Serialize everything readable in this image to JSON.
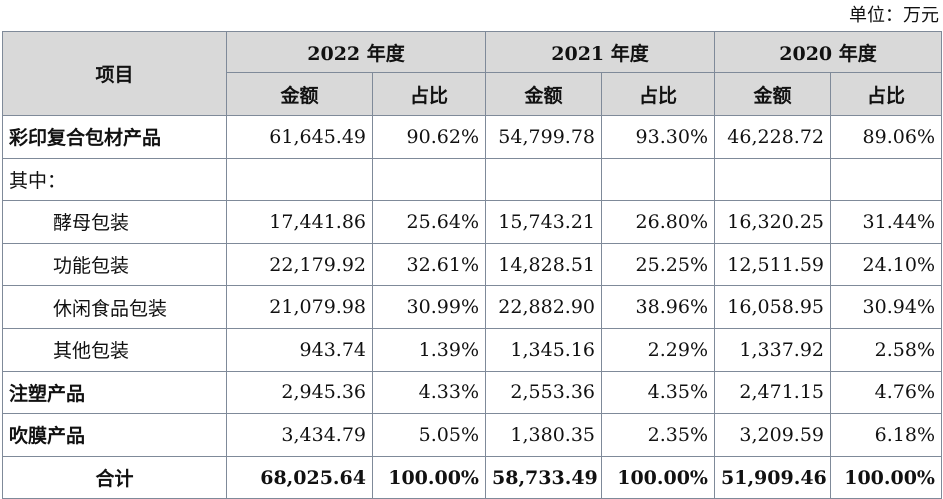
{
  "unit_label": "单位：万元",
  "header": {
    "item_label": "项目",
    "years": [
      "2022 年度",
      "2021 年度",
      "2020 年度"
    ],
    "amount_label": "金额",
    "ratio_label": "占比"
  },
  "rows": [
    {
      "label": "彩印复合包材产品",
      "values": [
        "61,645.49",
        "90.62%",
        "54,799.78",
        "93.30%",
        "46,228.72",
        "89.06%"
      ]
    },
    {
      "label": "其中：",
      "values": [
        "",
        "",
        "",
        "",
        "",
        ""
      ]
    },
    {
      "label": "酵母包装",
      "values": [
        "17,441.86",
        "25.64%",
        "15,743.21",
        "26.80%",
        "16,320.25",
        "31.44%"
      ]
    },
    {
      "label": "功能包装",
      "values": [
        "22,179.92",
        "32.61%",
        "14,828.51",
        "25.25%",
        "12,511.59",
        "24.10%"
      ]
    },
    {
      "label": "休闲食品包装",
      "values": [
        "21,079.98",
        "30.99%",
        "22,882.90",
        "38.96%",
        "16,058.95",
        "30.94%"
      ]
    },
    {
      "label": "其他包装",
      "values": [
        "943.74",
        "1.39%",
        "1,345.16",
        "2.29%",
        "1,337.92",
        "2.58%"
      ]
    },
    {
      "label": "注塑产品",
      "values": [
        "2,945.36",
        "4.33%",
        "2,553.36",
        "4.35%",
        "2,471.15",
        "4.76%"
      ]
    },
    {
      "label": "吹膜产品",
      "values": [
        "3,434.79",
        "5.05%",
        "1,380.35",
        "2.35%",
        "3,209.59",
        "6.18%"
      ]
    },
    {
      "label": "合计",
      "values": [
        "68,025.64",
        "100.00%",
        "58,733.49",
        "100.00%",
        "51,909.46",
        "100.00%"
      ]
    }
  ]
}
